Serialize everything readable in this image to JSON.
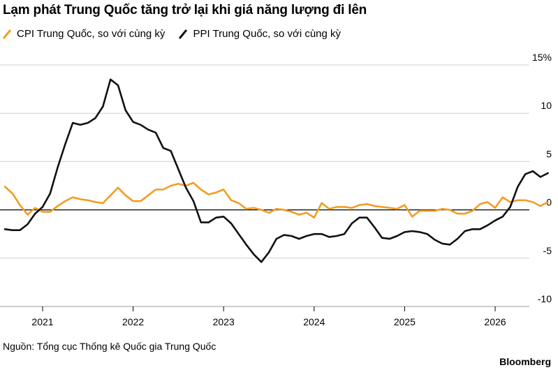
{
  "title": "Lạm phát Trung Quốc tăng trở lại khi giá năng lượng đi lên",
  "source": "Nguồn: Tổng cục Thống kê Quốc gia Trung Quốc",
  "brand": "Bloomberg",
  "colors": {
    "cpi": "#f39c24",
    "ppi": "#111111",
    "grid": "#cfcfcf",
    "zero": "#000000"
  },
  "chart_data": {
    "type": "line",
    "title": "Lạm phát Trung Quốc tăng trở lại khi giá năng lượng đi lên",
    "xlabel": "",
    "ylabel": "",
    "y_axis_side": "right",
    "ylim": [
      -10,
      15
    ],
    "y_ticks": [
      15,
      10,
      5,
      0,
      -5,
      -10
    ],
    "y_tick_labels": [
      "15%",
      "10",
      "5",
      "0",
      "-5",
      "-10"
    ],
    "x_ticks": [
      "2021",
      "2022",
      "2023",
      "2024",
      "2025",
      "2026"
    ],
    "x_start": "2020-08",
    "x_end": "2026-09",
    "grid": true,
    "legend_position": "top-left",
    "series": [
      {
        "name": "CPI Trung Quốc, so với cùng kỳ",
        "color": "#f39c24",
        "values": [
          2.4,
          1.7,
          0.5,
          -0.5,
          0.2,
          -0.2,
          -0.2,
          0.4,
          0.9,
          1.3,
          1.1,
          1.0,
          0.8,
          0.7,
          1.5,
          2.3,
          1.5,
          0.9,
          0.9,
          1.5,
          2.1,
          2.1,
          2.5,
          2.7,
          2.5,
          2.8,
          2.1,
          1.6,
          1.8,
          2.1,
          1.0,
          0.7,
          0.1,
          0.2,
          0.0,
          -0.3,
          0.1,
          0.0,
          -0.2,
          -0.5,
          -0.3,
          -0.8,
          0.7,
          0.1,
          0.3,
          0.3,
          0.2,
          0.5,
          0.6,
          0.4,
          0.3,
          0.2,
          0.1,
          0.5,
          -0.7,
          -0.1,
          -0.1,
          -0.1,
          0.1,
          0.0,
          -0.4,
          -0.4,
          -0.1,
          0.6,
          0.8,
          0.2,
          1.3,
          0.8,
          1.0,
          1.0,
          0.8,
          0.4,
          0.8
        ]
      },
      {
        "name": "PPI Trung Quốc, so với cùng kỳ",
        "color": "#111111",
        "values": [
          -2.0,
          -2.1,
          -2.1,
          -1.5,
          -0.4,
          0.3,
          1.7,
          4.4,
          6.8,
          9.0,
          8.8,
          9.0,
          9.5,
          10.7,
          13.5,
          12.9,
          10.3,
          9.1,
          8.8,
          8.3,
          8.0,
          6.4,
          6.1,
          4.2,
          2.3,
          0.9,
          -1.3,
          -1.3,
          -0.8,
          -0.7,
          -1.4,
          -2.5,
          -3.6,
          -4.6,
          -5.4,
          -4.4,
          -3.0,
          -2.6,
          -2.7,
          -3.0,
          -2.7,
          -2.5,
          -2.5,
          -2.8,
          -2.7,
          -2.5,
          -1.4,
          -0.8,
          -0.8,
          -1.8,
          -2.9,
          -3.0,
          -2.7,
          -2.3,
          -2.2,
          -2.3,
          -2.5,
          -3.1,
          -3.5,
          -3.6,
          -3.0,
          -2.2,
          -2.0,
          -2.0,
          -1.6,
          -1.1,
          -0.7,
          0.3,
          2.4,
          3.7,
          4.0,
          3.4,
          3.8
        ]
      }
    ]
  }
}
